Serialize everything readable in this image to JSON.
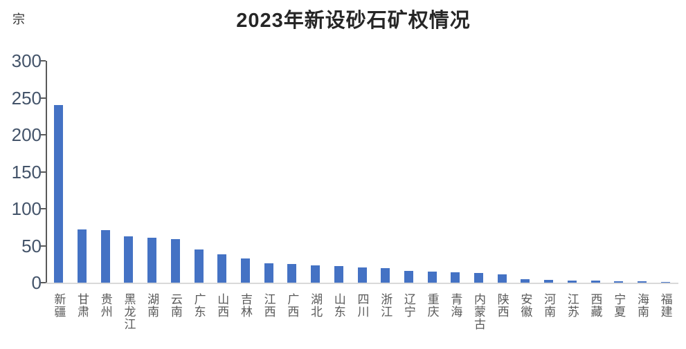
{
  "unit_label": "宗",
  "chart_data": {
    "type": "bar",
    "title": "2023年新设砂石矿权情况",
    "ylabel": "宗",
    "xlabel": "",
    "ylim": [
      0,
      300
    ],
    "yticks": [
      0,
      50,
      100,
      150,
      200,
      250,
      300
    ],
    "grid": false,
    "legend_position": "none",
    "bar_color": "#4472C4",
    "categories": [
      "新疆",
      "甘肃",
      "贵州",
      "黑龙江",
      "湖南",
      "云南",
      "广东",
      "山西",
      "吉林",
      "江西",
      "广西",
      "湖北",
      "山东",
      "四川",
      "浙江",
      "辽宁",
      "重庆",
      "青海",
      "内蒙古",
      "陕西",
      "安徽",
      "河南",
      "江苏",
      "西藏",
      "宁夏",
      "海南",
      "福建"
    ],
    "values": [
      240,
      72,
      71,
      63,
      61,
      59,
      45,
      38,
      33,
      26,
      25,
      23,
      22,
      21,
      20,
      16,
      15,
      14,
      13,
      11,
      5,
      4,
      3,
      3,
      2,
      2,
      1
    ]
  },
  "colors": {
    "bar": "#4472C4",
    "axis_line": "#595959",
    "baseline": "#D9D9D9",
    "y_label": "#44546A",
    "x_label": "#595959",
    "title": "#262626"
  }
}
